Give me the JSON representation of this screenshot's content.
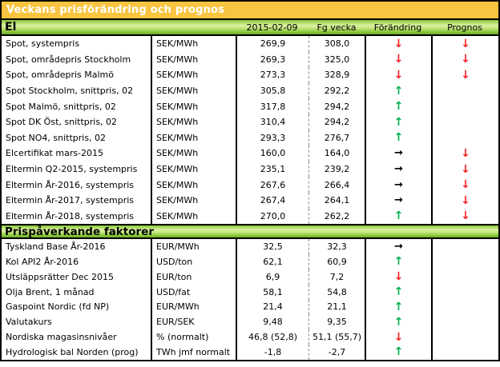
{
  "title": "Veckans prisförändring och prognos",
  "colors": {
    "orange": "#F9C440",
    "up": "#00B050",
    "down": "#FF2020",
    "flat": "#000000"
  },
  "icons": {
    "up": "↑",
    "down": "↓",
    "flat": "→"
  },
  "columns": {
    "date": "2015-02-09",
    "prev": "Fg vecka",
    "change": "Förändring",
    "forecast": "Prognos"
  },
  "sections": [
    {
      "label": "El",
      "rows": [
        {
          "name": "Spot, systempris",
          "unit": "SEK/MWh",
          "value": "269,9",
          "prev": "308,0",
          "change": "down",
          "forecast": "down"
        },
        {
          "name": "Spot, områdepris Stockholm",
          "unit": "SEK/MWh",
          "value": "269,3",
          "prev": "325,0",
          "change": "down",
          "forecast": "down"
        },
        {
          "name": "Spot, områdepris Malmö",
          "unit": "SEK/MWh",
          "value": "273,3",
          "prev": "328,9",
          "change": "down",
          "forecast": "down"
        },
        {
          "name": "Spot Stockholm, snittpris, 02",
          "unit": "SEK/MWh",
          "value": "305,8",
          "prev": "292,2",
          "change": "up",
          "forecast": ""
        },
        {
          "name": "Spot Malmö, snittpris, 02",
          "unit": "SEK/MWh",
          "value": "317,8",
          "prev": "294,2",
          "change": "up",
          "forecast": ""
        },
        {
          "name": "Spot DK Öst, snittpris, 02",
          "unit": "SEK/MWh",
          "value": "310,4",
          "prev": "294,2",
          "change": "up",
          "forecast": ""
        },
        {
          "name": "Spot NO4, snittpris, 02",
          "unit": "SEK/MWh",
          "value": "293,3",
          "prev": "276,7",
          "change": "up",
          "forecast": ""
        },
        {
          "name": "Elcertifikat mars-2015",
          "unit": "SEK/MWh",
          "value": "160,0",
          "prev": "164,0",
          "change": "flat",
          "forecast": "down"
        },
        {
          "name": "Eltermin Q2-2015, systempris",
          "unit": "SEK/MWh",
          "value": "235,1",
          "prev": "239,2",
          "change": "flat",
          "forecast": "down"
        },
        {
          "name": "Eltermin År-2016, systempris",
          "unit": "SEK/MWh",
          "value": "267,6",
          "prev": "266,4",
          "change": "flat",
          "forecast": "down"
        },
        {
          "name": "Eltermin År-2017, systempris",
          "unit": "SEK/MWh",
          "value": "267,4",
          "prev": "264,1",
          "change": "flat",
          "forecast": "down"
        },
        {
          "name": "Eltermin År-2018, systempris",
          "unit": "SEK/MWh",
          "value": "270,0",
          "prev": "262,2",
          "change": "up",
          "forecast": "down"
        }
      ]
    },
    {
      "label": "Prispåverkande faktorer",
      "rows": [
        {
          "name": "Tyskland Base År-2016",
          "unit": "EUR/MWh",
          "value": "32,5",
          "prev": "32,3",
          "change": "flat",
          "forecast": ""
        },
        {
          "name": "Kol API2 År-2016",
          "unit": "USD/ton",
          "value": "62,1",
          "prev": "60,9",
          "change": "up",
          "forecast": ""
        },
        {
          "name": "Utsläppsrätter Dec 2015",
          "unit": "EUR/ton",
          "value": "6,9",
          "prev": "7,2",
          "change": "down",
          "forecast": ""
        },
        {
          "name": "Olja Brent, 1 månad",
          "unit": "USD/fat",
          "value": "58,1",
          "prev": "54,8",
          "change": "up",
          "forecast": ""
        },
        {
          "name": "Gaspoint Nordic (fd NP)",
          "unit": "EUR/MWh",
          "value": "21,4",
          "prev": "21,1",
          "change": "up",
          "forecast": ""
        },
        {
          "name": "Valutakurs",
          "unit": "EUR/SEK",
          "value": "9,48",
          "prev": "9,35",
          "change": "up",
          "forecast": ""
        },
        {
          "name": "Nordiska magasinsnivåer",
          "unit": "%  (normalt)",
          "value": "46,8 (52,8)",
          "prev": "51,1 (55,7)",
          "change": "down",
          "forecast": ""
        },
        {
          "name": "Hydrologisk bal Norden (prog)",
          "unit": "TWh jmf normalt",
          "value": "-1,8",
          "prev": "-2,7",
          "change": "up",
          "forecast": ""
        }
      ]
    }
  ]
}
